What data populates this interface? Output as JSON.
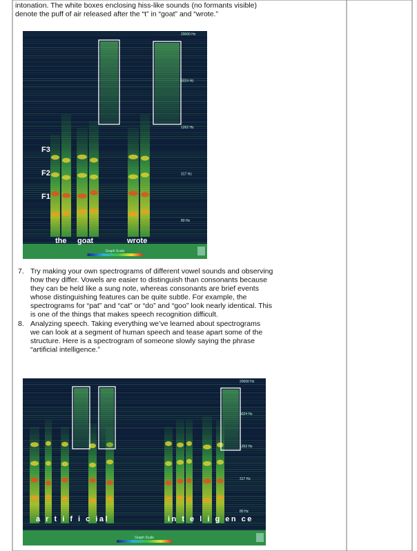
{
  "paragraph": {
    "lines": [
      "intonation. The white boxes enclosing hiss-like sounds (no formants visible)",
      "denote the puff of air released after the “t” in “goat” and “wrote.”"
    ]
  },
  "figure_1": {
    "freq_labels": [
      "20000 Hz",
      "5024 Hz",
      "1262 Hz",
      "317 Hz",
      "80 Hz"
    ],
    "formant_labels": [
      "F3",
      "F2",
      "F1"
    ],
    "word_labels": [
      "the",
      "goat",
      "wrote"
    ],
    "scale_label": "Graph Scale"
  },
  "list": [
    {
      "number": "7.",
      "lines": [
        "Try making your own spectrograms of different vowel sounds and observing",
        "how they differ. Vowels are easier to distinguish than consonants because",
        "they can be held like a sung note, whereas consonants are brief events",
        "whose distinguishing features can be quite subtle. For example, the",
        "spectrograms for “pat” and “cat” or “do” and “goo” look nearly identical. This",
        "is one of the things that makes speech recognition difficult."
      ]
    },
    {
      "number": "8.",
      "lines": [
        "Analyzing speech. Taking everything we’ve learned about spectrograms",
        "we can look at a segment of human speech and tease apart some of the",
        "structure. Here is a spectrogram of someone slowly saying the phrase",
        "“artificial intelligence.”"
      ]
    }
  ],
  "figure_2": {
    "freq_labels": [
      "20000 Hz",
      "5024 Hz",
      "1262 Hz",
      "317 Hz",
      "80 Hz"
    ],
    "word_labels": [
      "a r t i f i c ial",
      "in t e l i g en ce"
    ],
    "scale_label": "Graph Scale"
  }
}
